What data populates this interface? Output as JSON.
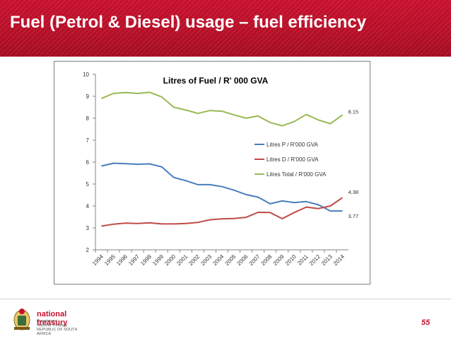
{
  "slide": {
    "title": "Fuel (Petrol & Diesel) usage – fuel efficiency",
    "page_number": "55",
    "brand_color": "#c8102e"
  },
  "logo": {
    "name": "national treasury",
    "line1": "Department:",
    "line2": "National Treasury",
    "line3": "REPUBLIC OF SOUTH AFRICA"
  },
  "chart_data": {
    "type": "line",
    "title": "Litres of Fuel / R' 000 GVA",
    "xlabel": "",
    "ylabel": "",
    "ylim": [
      2,
      10
    ],
    "yticks": [
      2,
      3,
      4,
      5,
      6,
      7,
      8,
      9,
      10
    ],
    "grid": false,
    "legend": "right",
    "categories": [
      "1994",
      "1995",
      "1996",
      "1997",
      "1998",
      "1999",
      "2000",
      "2001",
      "2002",
      "2003",
      "2004",
      "2005",
      "2006",
      "2007",
      "2008",
      "2009",
      "2010",
      "2011",
      "2012",
      "2013",
      "2014"
    ],
    "series": [
      {
        "name": "Litres  P / R'000 GVA",
        "color": "#4a7ebb",
        "values": [
          5.82,
          5.95,
          5.93,
          5.9,
          5.92,
          5.78,
          5.3,
          5.15,
          4.97,
          4.97,
          4.88,
          4.72,
          4.52,
          4.4,
          4.1,
          4.23,
          4.15,
          4.2,
          4.05,
          3.77,
          3.77
        ],
        "end_label": "3.77"
      },
      {
        "name": "Litres  D / R'000 GVA",
        "color": "#be4b48",
        "values": [
          3.08,
          3.17,
          3.22,
          3.2,
          3.23,
          3.18,
          3.18,
          3.2,
          3.25,
          3.37,
          3.41,
          3.43,
          3.48,
          3.71,
          3.7,
          3.42,
          3.7,
          3.95,
          3.88,
          4.0,
          4.38
        ],
        "end_label": "4.38"
      },
      {
        "name": "Litres Total / R'000 GVA",
        "color": "#98b954",
        "values": [
          8.9,
          9.13,
          9.17,
          9.13,
          9.18,
          8.97,
          8.5,
          8.37,
          8.22,
          8.35,
          8.32,
          8.15,
          8.0,
          8.1,
          7.8,
          7.65,
          7.85,
          8.17,
          7.92,
          7.75,
          8.15
        ],
        "end_label": "8.15"
      }
    ]
  }
}
